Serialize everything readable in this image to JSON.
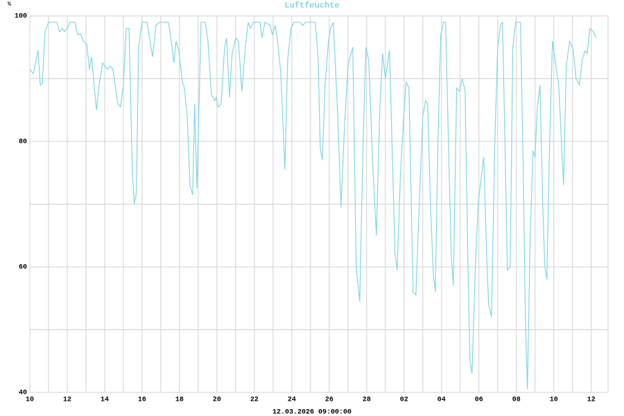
{
  "chart_data": {
    "type": "line",
    "title": "Luftfeuchte",
    "subtitle": "12.03.2026 09:00:00",
    "ylabel": "%",
    "series": [
      {
        "name": "Luftfeuchte",
        "color": "#7fd6e6",
        "x": [
          10.0,
          10.19,
          10.44,
          10.56,
          10.67,
          10.81,
          11.0,
          11.44,
          11.59,
          11.74,
          11.85,
          12.0,
          12.15,
          12.41,
          12.56,
          12.7,
          12.85,
          13.04,
          13.19,
          13.3,
          13.56,
          13.7,
          13.89,
          14.15,
          14.3,
          14.44,
          14.7,
          14.85,
          15.0,
          15.15,
          15.3,
          15.48,
          15.59,
          15.7,
          15.81,
          16.0,
          16.26,
          16.56,
          16.74,
          16.93,
          17.41,
          17.56,
          17.7,
          17.81,
          17.96,
          18.15,
          18.26,
          18.41,
          18.56,
          18.7,
          18.81,
          18.93,
          19.15,
          19.37,
          19.52,
          19.7,
          19.89,
          19.96,
          20.07,
          20.22,
          20.41,
          20.52,
          20.67,
          20.81,
          21.0,
          21.15,
          21.33,
          21.52,
          21.67,
          21.78,
          21.96,
          22.3,
          22.41,
          22.56,
          22.85,
          22.96,
          23.11,
          23.22,
          23.41,
          23.63,
          23.78,
          23.96,
          24.11,
          24.44,
          24.59,
          24.74,
          25.26,
          25.41,
          25.52,
          25.63,
          25.78,
          25.96,
          26.07,
          26.22,
          26.44,
          26.63,
          26.81,
          27.0,
          27.11,
          27.26,
          27.44,
          27.63,
          27.81,
          27.96,
          28.11,
          28.33,
          28.52,
          28.7,
          28.85,
          29.0,
          29.22,
          29.37,
          29.52,
          29.63,
          29.81,
          30.0,
          30.11,
          30.26,
          30.48,
          30.63,
          30.81,
          31.0,
          31.15,
          31.26,
          31.41,
          31.56,
          31.67,
          31.81,
          31.96,
          32.11,
          32.22,
          32.41,
          32.52,
          32.63,
          32.81,
          32.96,
          33.11,
          33.26,
          33.41,
          33.52,
          33.63,
          33.81,
          33.96,
          34.15,
          34.26,
          34.41,
          34.52,
          34.67,
          34.85,
          35.0,
          35.15,
          35.26,
          35.41,
          35.52,
          35.67,
          35.81,
          35.96,
          36.22,
          36.37,
          36.48,
          36.59,
          36.74,
          36.89,
          37.0,
          37.11,
          37.26,
          37.41,
          37.52,
          37.63,
          37.78,
          37.93,
          38.11,
          38.26,
          38.41,
          38.52,
          38.67,
          38.85,
          39.04,
          39.19,
          39.37,
          39.52,
          39.67,
          39.78,
          39.93,
          40.11,
          40.26
        ],
        "values": [
          91.5,
          90.8,
          94.5,
          89,
          89.2,
          97.5,
          99,
          99,
          97.5,
          98,
          97.5,
          98,
          99,
          99,
          97,
          97.2,
          96,
          95.5,
          91.5,
          93.5,
          85,
          89,
          92.5,
          91.5,
          92,
          91.5,
          86,
          85.5,
          89,
          98,
          98,
          75,
          70,
          72,
          95,
          99,
          99,
          93.5,
          98.5,
          99,
          99,
          96,
          92.5,
          96,
          94.5,
          89.5,
          88.5,
          84,
          73,
          71.5,
          86,
          72.5,
          99,
          99,
          96,
          87.5,
          86.5,
          87,
          85.5,
          86,
          95,
          96.5,
          87,
          94,
          96.5,
          96,
          88,
          95,
          99,
          98,
          99,
          99,
          96.5,
          99,
          98.5,
          97,
          98.5,
          96.5,
          91,
          75.5,
          93,
          98,
          99,
          99,
          98.5,
          99,
          99,
          93,
          79,
          77,
          89,
          96,
          98,
          99,
          85,
          69.5,
          82,
          92,
          93.5,
          95,
          60,
          54.5,
          80,
          95,
          93,
          76,
          65,
          85,
          94,
          90,
          94.5,
          78,
          62,
          59.5,
          75,
          85,
          89.5,
          88.5,
          56,
          55.5,
          70,
          84,
          86.5,
          86,
          70,
          59,
          56,
          80,
          97,
          99,
          99,
          75,
          62,
          57,
          88.5,
          88,
          90,
          88,
          61,
          45,
          43,
          60,
          70,
          75,
          77.5,
          62,
          54,
          52,
          80,
          95,
          98.5,
          99,
          77,
          59.5,
          60,
          95,
          99,
          99,
          75,
          52,
          40.5,
          65,
          78.5,
          77.5,
          85,
          89,
          70,
          60,
          58,
          80,
          96,
          92,
          89,
          80,
          73,
          92,
          96,
          94.5,
          90,
          89,
          93,
          94.5,
          94,
          98,
          97.5,
          96.5
        ]
      }
    ],
    "xlim": [
      10,
      40.9
    ],
    "xticks": [
      10,
      12,
      14,
      16,
      18,
      20,
      22,
      24,
      26,
      28,
      {
        "value": 30,
        "label": "02"
      },
      {
        "value": 32,
        "label": "04"
      },
      {
        "value": 34,
        "label": "06"
      },
      {
        "value": 36,
        "label": "08"
      },
      {
        "value": 38,
        "label": "10"
      },
      {
        "value": 40,
        "label": "12"
      }
    ],
    "xminorticks": [
      11,
      13,
      15,
      17,
      19,
      21,
      23,
      25,
      27,
      29,
      31,
      33,
      35,
      37,
      39
    ],
    "ylim": [
      40,
      100
    ],
    "yticks": [
      40,
      60,
      80,
      100
    ],
    "yminorticks": [
      50,
      70,
      90
    ],
    "grid": true
  }
}
